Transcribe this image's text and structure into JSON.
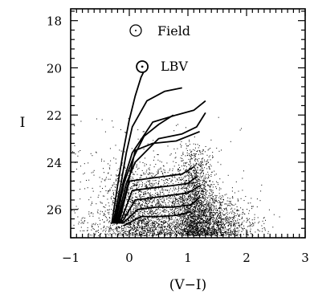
{
  "chart_data": {
    "type": "scatter",
    "xlabel": "(V−I)",
    "ylabel": "I",
    "xlim": [
      -1,
      3
    ],
    "ylim": [
      27.2,
      17.5
    ],
    "y_inverted": true,
    "x_ticks": [
      -1,
      0,
      1,
      2,
      3
    ],
    "x_tick_labels": [
      "−1",
      "0",
      "1",
      "2",
      "3"
    ],
    "y_ticks": [
      18,
      20,
      22,
      24,
      26
    ],
    "y_tick_labels": [
      "18",
      "20",
      "22",
      "24",
      "26"
    ],
    "legend": [
      {
        "label": "Field",
        "marker": "open-circle"
      },
      {
        "label": "LBV",
        "marker": "open-circle-with-dot"
      }
    ],
    "highlight_points": [
      {
        "name": "LBV",
        "x": 0.22,
        "y": 19.95
      }
    ],
    "isochrones": [
      {
        "x": [
          -0.3,
          -0.2,
          -0.1,
          0.0,
          0.1,
          0.2,
          0.3
        ],
        "y": [
          26.6,
          25.0,
          23.5,
          22.2,
          21.2,
          20.4,
          19.9
        ]
      },
      {
        "x": [
          -0.28,
          -0.15,
          -0.05,
          0.05,
          0.3,
          0.6,
          0.9
        ],
        "y": [
          26.6,
          25.0,
          23.6,
          22.5,
          21.4,
          21.0,
          20.85
        ]
      },
      {
        "x": [
          -0.26,
          -0.1,
          0.05,
          0.4,
          0.8,
          1.1,
          1.3
        ],
        "y": [
          26.6,
          24.8,
          23.6,
          22.3,
          22.0,
          21.8,
          21.4
        ]
      },
      {
        "x": [
          -0.24,
          -0.08,
          0.07,
          0.25,
          0.5,
          0.75
        ],
        "y": [
          26.6,
          24.8,
          23.8,
          22.9,
          22.4,
          22.0
        ]
      },
      {
        "x": [
          -0.22,
          -0.05,
          0.1,
          0.5,
          0.9,
          1.15,
          1.3
        ],
        "y": [
          26.6,
          24.9,
          24.0,
          23.0,
          22.8,
          22.5,
          21.9
        ]
      },
      {
        "x": [
          -0.2,
          -0.03,
          0.1,
          0.4,
          0.8,
          1.2
        ],
        "y": [
          26.6,
          25.0,
          23.5,
          23.2,
          23.1,
          22.7
        ]
      },
      {
        "x": [
          -0.18,
          0.0,
          0.3,
          0.6,
          0.9,
          1.1
        ],
        "y": [
          26.6,
          24.8,
          24.7,
          24.6,
          24.5,
          24.2
        ]
      },
      {
        "x": [
          -0.16,
          0.05,
          0.35,
          0.7,
          1.0,
          1.15
        ],
        "y": [
          26.6,
          25.2,
          25.1,
          25.0,
          24.9,
          24.6
        ]
      },
      {
        "x": [
          -0.14,
          0.1,
          0.4,
          0.7,
          1.0,
          1.2
        ],
        "y": [
          26.6,
          25.6,
          25.5,
          25.4,
          25.3,
          25.0
        ]
      },
      {
        "x": [
          -0.12,
          0.15,
          0.45,
          0.75,
          1.05,
          1.2
        ],
        "y": [
          26.6,
          26.0,
          25.9,
          25.9,
          25.8,
          25.5
        ]
      },
      {
        "x": [
          -0.1,
          0.2,
          0.5,
          0.8,
          1.05
        ],
        "y": [
          26.7,
          26.3,
          26.3,
          26.25,
          26.1
        ]
      }
    ],
    "scatter_clouds": [
      {
        "x_center": 0.2,
        "x_sd": 0.35,
        "y_min": 23.8,
        "y_max": 27.1,
        "n": 1800
      },
      {
        "x_center": 1.1,
        "x_sd": 0.18,
        "y_min": 23.0,
        "y_max": 27.1,
        "n": 1800
      },
      {
        "x_center": 1.4,
        "x_sd": 0.35,
        "y_min": 25.3,
        "y_max": 27.1,
        "n": 1300
      },
      {
        "x_center": 0.0,
        "x_sd": 1.0,
        "y_min": 21.5,
        "y_max": 27.1,
        "n": 450
      }
    ],
    "grid": false
  }
}
